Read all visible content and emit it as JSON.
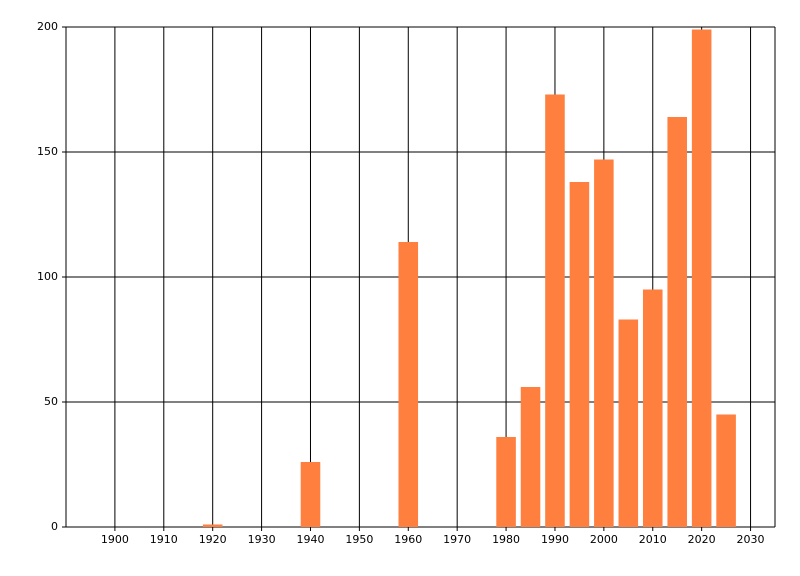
{
  "chart_data": {
    "type": "bar",
    "x": [
      1920,
      1940,
      1960,
      1980,
      1985,
      1990,
      1995,
      2000,
      2005,
      2010,
      2015,
      2020,
      2025
    ],
    "values": [
      1,
      26,
      114,
      36,
      56,
      173,
      138,
      147,
      83,
      95,
      164,
      199,
      45
    ],
    "color": "#ff7f3f",
    "xlim": [
      1890,
      2035
    ],
    "xticks": [
      1900,
      1910,
      1920,
      1930,
      1940,
      1950,
      1960,
      1970,
      1980,
      1990,
      2000,
      2010,
      2020,
      2030
    ],
    "ylim": [
      0,
      200
    ],
    "yticks": [
      0,
      50,
      100,
      150,
      200
    ],
    "grid": true
  }
}
